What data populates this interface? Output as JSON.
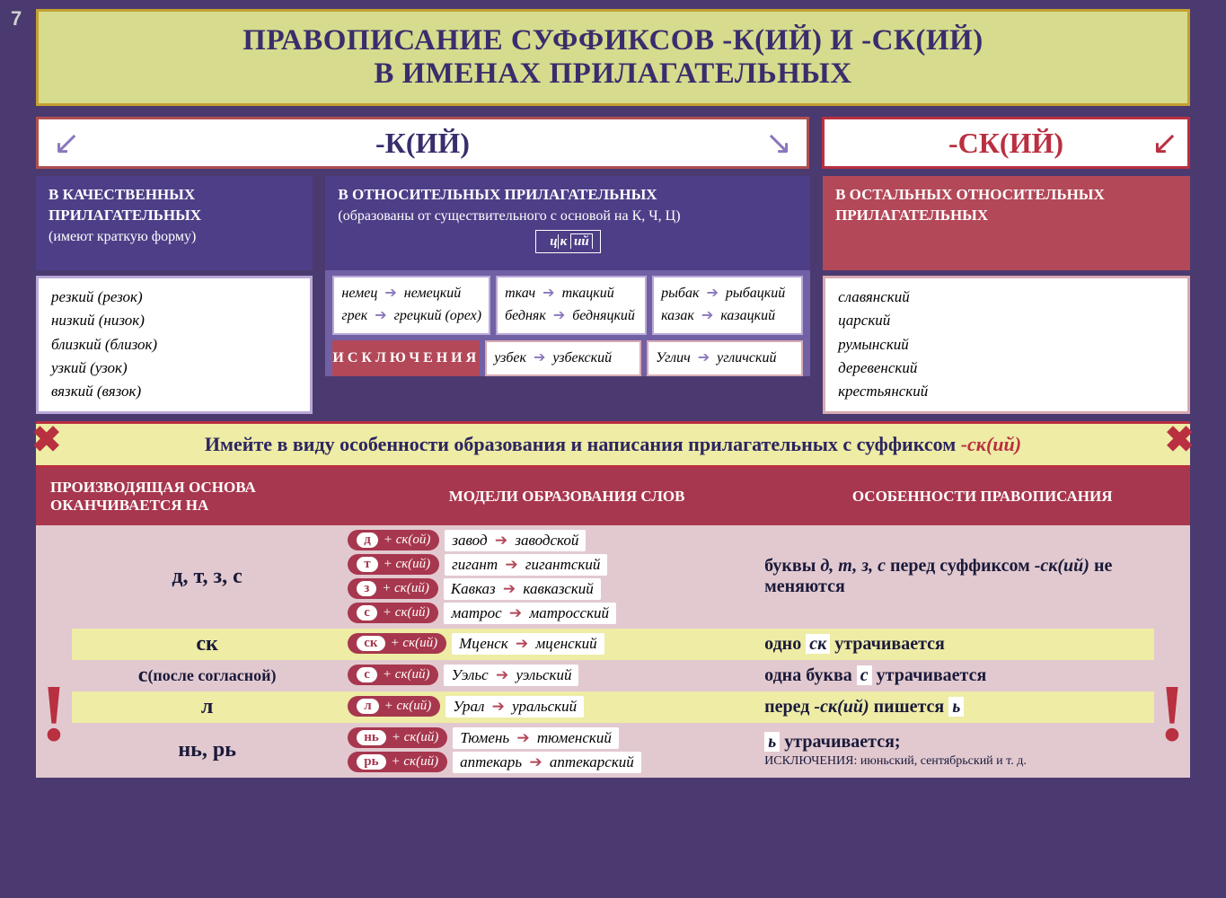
{
  "page_number": "7",
  "colors": {
    "bg": "#4a3a6f",
    "title_bg": "#d6db8d",
    "title_border": "#c5a030",
    "dark_purple": "#3a2d6d",
    "header_red": "#b93040",
    "purple_header": "#4e3e87",
    "red_header": "#b34858",
    "light_purple_accent": "#8a77bd",
    "yellow_strip": "#eeeca5",
    "pink_header": "#a7374e",
    "pink_cell": "#e2c9d0"
  },
  "title_line1": "ПРАВОПИСАНИЕ СУФФИКСОВ -К(ИЙ) И -СК(ИЙ)",
  "title_line2": "В ИМЕНАХ ПРИЛАГАТЕЛЬНЫХ",
  "header_k": "-К(ИЙ)",
  "header_sk": "-СК(ИЙ)",
  "col1_header": "В КАЧЕСТВЕННЫХ ПРИЛАГАТЕЛЬНЫХ",
  "col1_sub": "(имеют краткую форму)",
  "col1_examples": [
    "резкий (резок)",
    "низкий (низок)",
    "близкий (близок)",
    "узкий (узок)",
    "вязкий (вязок)"
  ],
  "col2_header": "В ОТНОСИТЕЛЬНЫХ ПРИЛАГАТЕЛЬНЫХ",
  "col2_sub": "(образованы от существительного с основой на К, Ч, Ц)",
  "col2_morph": "ий",
  "col2_box1": [
    "немец → немецкий",
    "грек → грецкий (орех)"
  ],
  "col2_box2": [
    "ткач → ткацкий",
    "бедняк → бедняцкий"
  ],
  "col2_box3": [
    "рыбак → рыбацкий",
    "казак → казацкий"
  ],
  "col2_excep_label": "ИСКЛЮЧЕНИЯ",
  "col2_exc1": "узбек → узбекский",
  "col2_exc2": "Углич → угличский",
  "col3_header": "В ОСТАЛЬНЫХ ОТНОСИТЕЛЬНЫХ ПРИЛАГАТЕЛЬНЫХ",
  "col3_examples": [
    "славянский",
    "царский",
    "румынский",
    "деревенский",
    "крестьянский"
  ],
  "yellow_strip_text": "Имейте в виду особенности образования и написания прилагательных с суффиксом ",
  "yellow_strip_suffix": "-ск(ий)",
  "ph1": "ПРОИЗВОДЯЩАЯ ОСНОВА ОКАНЧИВАЕТСЯ НА",
  "ph2": "МОДЕЛИ ОБРАЗОВАНИЯ СЛОВ",
  "ph3": "ОСОБЕННОСТИ ПРАВОПИСАНИЯ",
  "rows": [
    {
      "bg": "pink",
      "c1_main": "д, т, з, с",
      "models": [
        {
          "base": "д",
          "suf": "+ ск(ой)",
          "ex": "завод → заводской"
        },
        {
          "base": "т",
          "suf": "+ ск(ий)",
          "ex": "гигант → гигантский"
        },
        {
          "base": "з",
          "suf": "+ ск(ий)",
          "ex": "Кавказ → кавказский"
        },
        {
          "base": "с",
          "suf": "+ ск(ий)",
          "ex": "матрос → матросский"
        }
      ],
      "c3_html": "буквы <span class='it'>д, т, з, с</span> перед суффиксом <span class='it'>-ск(ий)</span> не меняются"
    },
    {
      "bg": "yellow",
      "c1_main": "ск",
      "models": [
        {
          "base": "ск",
          "suf": "+ ск(ий)",
          "ex": "Мценск → мценский"
        }
      ],
      "c3_html": "одно <span class='it box'>ск</span> утрачивается"
    },
    {
      "bg": "pink",
      "c1_main": "с <span class='sub' style='display:inline;font-size:18px'>(после согласной)</span>",
      "models": [
        {
          "base": "с",
          "suf": "+ ск(ий)",
          "ex": "Уэльс → уэльский"
        }
      ],
      "c3_html": "одна буква <span class='it box'>с</span> утрачивается"
    },
    {
      "bg": "yellow",
      "c1_main": "л",
      "models": [
        {
          "base": "л",
          "suf": "+ ск(ий)",
          "ex": "Урал → уральский"
        }
      ],
      "c3_html": "перед <span class='it'>-ск(ий)</span> пишется <span class='it box'>ь</span>"
    },
    {
      "bg": "pink",
      "c1_main": "нь, рь",
      "models": [
        {
          "base": "нь",
          "suf": "+ ск(ий)",
          "ex": "Тюмень → тюменский"
        },
        {
          "base": "рь",
          "suf": "+ ск(ий)",
          "ex": "аптекарь → аптекарский"
        }
      ],
      "c3_html": "<span class='it box'>ь</span> утрачивается;<span class='small'>ИСКЛЮЧЕНИЯ: июньский, сентябрьский и т. д.</span>"
    }
  ]
}
